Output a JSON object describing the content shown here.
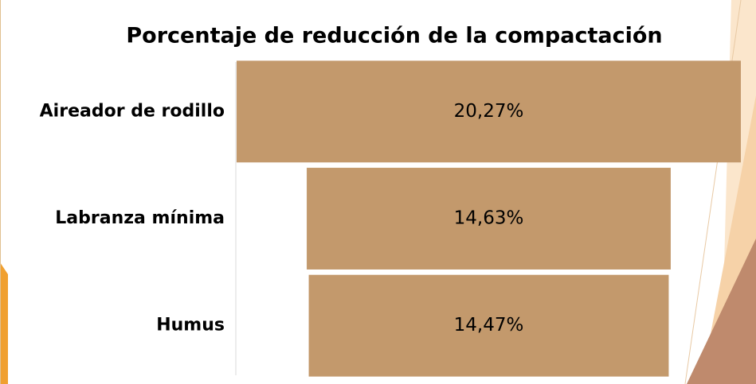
{
  "chart_data": {
    "type": "funnel",
    "title": "Porcentaje de reducción de la compactación",
    "categories": [
      "Aireador de rodillo",
      "Labranza mínima",
      "Humus"
    ],
    "values": [
      20.27,
      14.63,
      14.47
    ],
    "value_labels": [
      "20,27%",
      "14,63%",
      "14,47%"
    ],
    "color": "#c3996c"
  }
}
